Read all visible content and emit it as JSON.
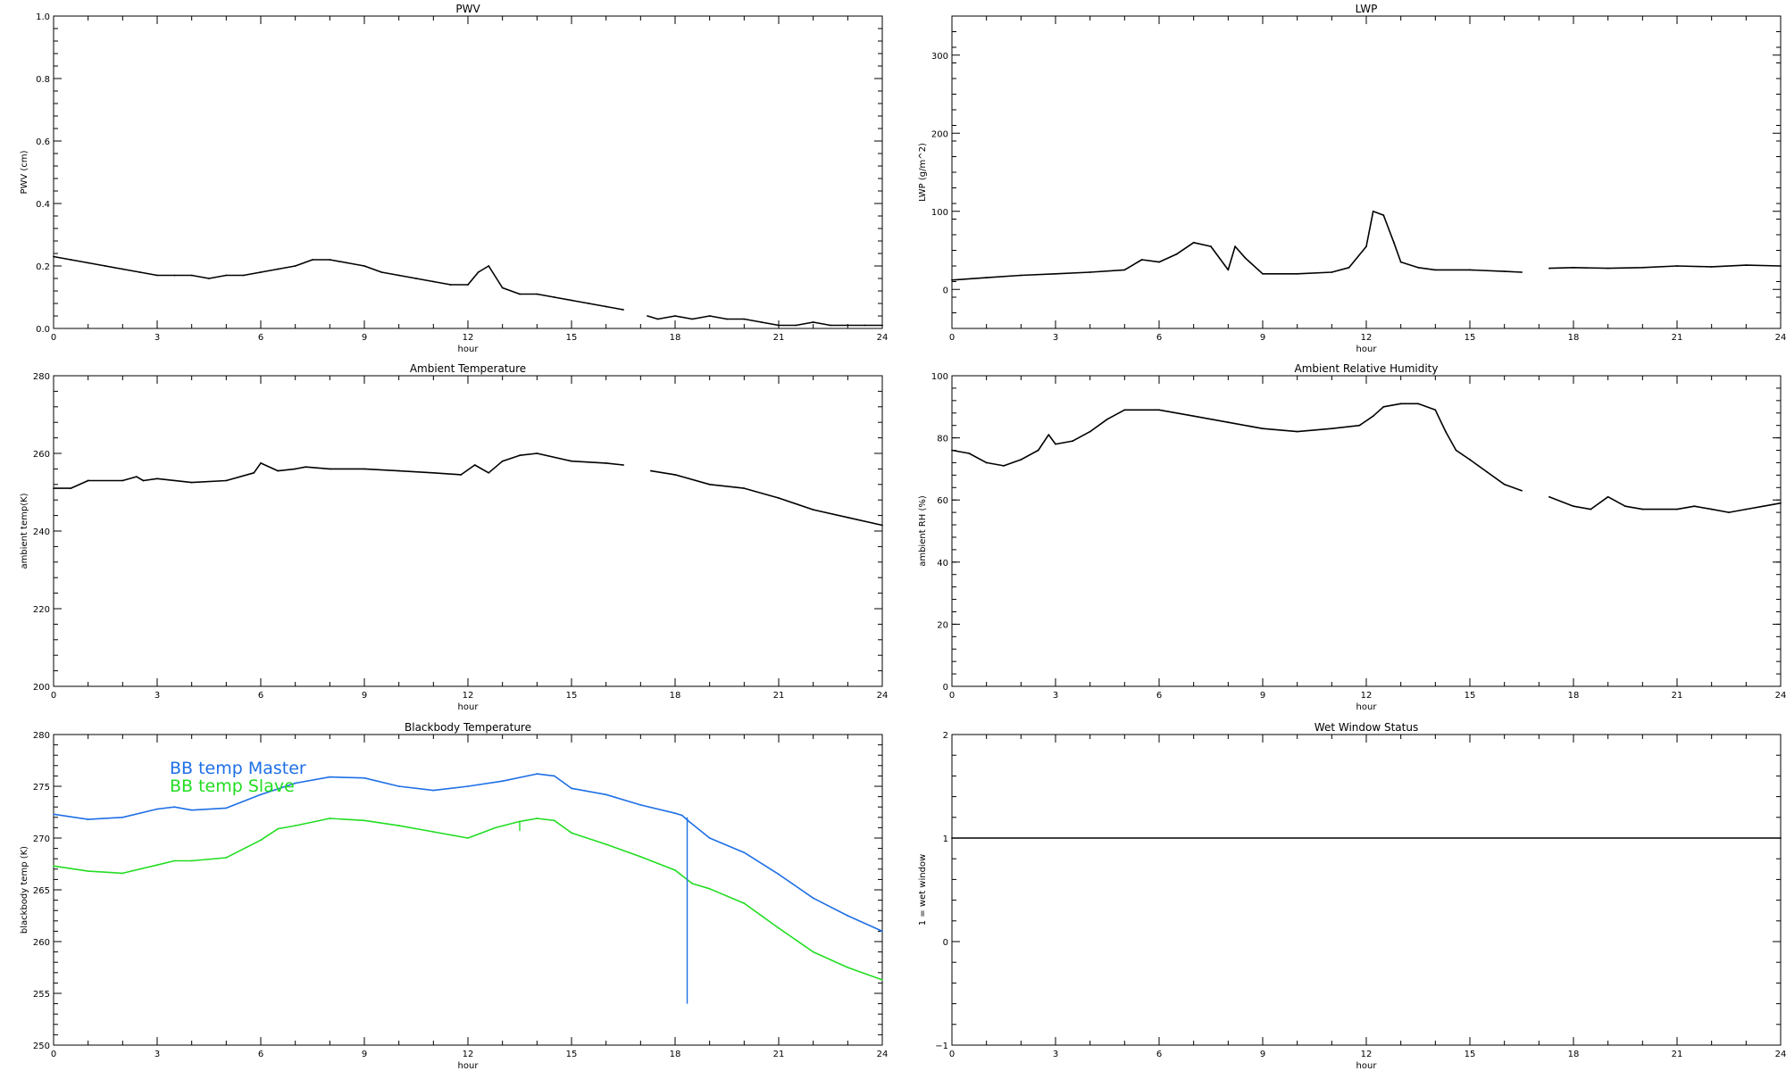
{
  "chart_data": [
    {
      "type": "line",
      "title": "PWV",
      "xlabel": "hour",
      "ylabel": "PWV (cm)",
      "xlim": [
        0,
        24
      ],
      "ylim": [
        0,
        1
      ],
      "xticks": [
        "0",
        "3",
        "6",
        "9",
        "12",
        "15",
        "18",
        "21",
        "24"
      ],
      "yticks": [
        "0.0",
        "0.2",
        "0.4",
        "0.6",
        "0.8",
        "1.0"
      ],
      "color": "#000000",
      "series": [
        {
          "segments": [
            {
              "x": [
                0,
                0.5,
                1,
                1.5,
                2,
                2.5,
                3,
                3.5,
                4,
                4.5,
                5,
                5.5,
                6,
                6.5,
                7,
                7.5,
                8,
                8.5,
                9,
                9.5,
                10,
                10.5,
                11,
                11.5,
                12,
                12.3,
                12.6,
                13,
                13.5,
                14,
                14.5,
                15,
                15.5,
                16,
                16.5
              ],
              "y": [
                0.23,
                0.22,
                0.21,
                0.2,
                0.19,
                0.18,
                0.17,
                0.17,
                0.17,
                0.16,
                0.17,
                0.17,
                0.18,
                0.19,
                0.2,
                0.22,
                0.22,
                0.21,
                0.2,
                0.18,
                0.17,
                0.16,
                0.15,
                0.14,
                0.14,
                0.18,
                0.2,
                0.13,
                0.11,
                0.11,
                0.1,
                0.09,
                0.08,
                0.07,
                0.06
              ]
            },
            {
              "x": [
                17.2,
                17.5,
                18,
                18.5,
                19,
                19.5,
                20,
                20.5,
                21,
                21.5,
                22,
                22.5,
                23,
                23.5,
                24
              ],
              "y": [
                0.04,
                0.03,
                0.04,
                0.03,
                0.04,
                0.03,
                0.03,
                0.02,
                0.01,
                0.01,
                0.02,
                0.01,
                0.01,
                0.01,
                0.01
              ]
            }
          ]
        }
      ]
    },
    {
      "type": "line",
      "title": "LWP",
      "xlabel": "hour",
      "ylabel": "LWP (g/m^2)",
      "xlim": [
        0,
        24
      ],
      "ylim": [
        -50,
        350
      ],
      "xticks": [
        "0",
        "3",
        "6",
        "9",
        "12",
        "15",
        "18",
        "21",
        "24"
      ],
      "yticks": [
        "0",
        "100",
        "200",
        "300"
      ],
      "color": "#000000",
      "series": [
        {
          "segments": [
            {
              "x": [
                0,
                1,
                2,
                3,
                4,
                5,
                5.5,
                6,
                6.5,
                7,
                7.5,
                8,
                8.2,
                8.5,
                9,
                10,
                11,
                11.5,
                12,
                12.2,
                12.5,
                12.8,
                13,
                13.5,
                14,
                15,
                16,
                16.5
              ],
              "y": [
                12,
                15,
                18,
                20,
                22,
                25,
                38,
                35,
                45,
                60,
                55,
                25,
                55,
                40,
                20,
                20,
                22,
                28,
                55,
                100,
                95,
                60,
                35,
                28,
                25,
                25,
                23,
                22
              ]
            },
            {
              "x": [
                17.3,
                18,
                19,
                20,
                21,
                22,
                23,
                24
              ],
              "y": [
                27,
                28,
                27,
                28,
                30,
                29,
                31,
                30
              ]
            }
          ]
        }
      ]
    },
    {
      "type": "line",
      "title": "Ambient Temperature",
      "xlabel": "hour",
      "ylabel": "ambient temp(K)",
      "xlim": [
        0,
        24
      ],
      "ylim": [
        200,
        280
      ],
      "xticks": [
        "0",
        "3",
        "6",
        "9",
        "12",
        "15",
        "18",
        "21",
        "24"
      ],
      "yticks": [
        "200",
        "220",
        "240",
        "260",
        "280"
      ],
      "color": "#000000",
      "series": [
        {
          "segments": [
            {
              "x": [
                0,
                0.5,
                1,
                2,
                2.4,
                2.6,
                3,
                4,
                5,
                5.8,
                6,
                6.5,
                7,
                7.3,
                8,
                9,
                10,
                11,
                11.8,
                12.2,
                12.6,
                13,
                13.5,
                14,
                15,
                16,
                16.5
              ],
              "y": [
                251,
                251,
                253,
                253,
                254,
                253,
                253.5,
                252.5,
                253,
                255,
                257.5,
                255.5,
                256,
                256.5,
                256,
                256,
                255.5,
                255,
                254.5,
                257,
                255,
                258,
                259.5,
                260,
                258,
                257.5,
                257
              ]
            },
            {
              "x": [
                17.3,
                18,
                19,
                20,
                21,
                22,
                23,
                24
              ],
              "y": [
                255.5,
                254.5,
                252,
                251,
                248.5,
                245.5,
                243.5,
                241.5
              ]
            }
          ]
        }
      ]
    },
    {
      "type": "line",
      "title": "Ambient Relative Humidity",
      "xlabel": "hour",
      "ylabel": "ambient RH (%)",
      "xlim": [
        0,
        24
      ],
      "ylim": [
        0,
        100
      ],
      "xticks": [
        "0",
        "3",
        "6",
        "9",
        "12",
        "15",
        "18",
        "21",
        "24"
      ],
      "yticks": [
        "0",
        "20",
        "40",
        "60",
        "80",
        "100"
      ],
      "color": "#000000",
      "series": [
        {
          "segments": [
            {
              "x": [
                0,
                0.5,
                1,
                1.5,
                2,
                2.5,
                2.8,
                3,
                3.5,
                4,
                4.5,
                5,
                6,
                7,
                8,
                9,
                10,
                11,
                11.8,
                12.2,
                12.5,
                13,
                13.5,
                14,
                14.3,
                14.6,
                15,
                15.5,
                16,
                16.5
              ],
              "y": [
                76,
                75,
                72,
                71,
                73,
                76,
                81,
                78,
                79,
                82,
                86,
                89,
                89,
                87,
                85,
                83,
                82,
                83,
                84,
                87,
                90,
                91,
                91,
                89,
                82,
                76,
                73,
                69,
                65,
                63
              ]
            },
            {
              "x": [
                17.3,
                18,
                18.5,
                19,
                19.5,
                20,
                21,
                21.5,
                22,
                22.5,
                23,
                23.5,
                24
              ],
              "y": [
                61,
                58,
                57,
                61,
                58,
                57,
                57,
                58,
                57,
                56,
                57,
                58,
                59
              ]
            }
          ]
        }
      ]
    },
    {
      "type": "line",
      "title": "Blackbody Temperature",
      "xlabel": "hour",
      "ylabel": "blackbody temp (K)",
      "xlim": [
        0,
        24
      ],
      "ylim": [
        250,
        280
      ],
      "xticks": [
        "0",
        "3",
        "6",
        "9",
        "12",
        "15",
        "18",
        "21",
        "24"
      ],
      "yticks": [
        "250",
        "255",
        "260",
        "265",
        "270",
        "275",
        "280"
      ],
      "legend": "top-left",
      "series": [
        {
          "name": "BB temp Master",
          "color": "#1e6fe6",
          "x": [
            0,
            1,
            2,
            3,
            3.5,
            4,
            5,
            6,
            7,
            8,
            9,
            10,
            11,
            12,
            13,
            14,
            14.5,
            15,
            16,
            17,
            18,
            18.2,
            18.4,
            19,
            20,
            21,
            22,
            23,
            24
          ],
          "y": [
            272.3,
            271.8,
            272,
            272.8,
            273,
            272.7,
            272.9,
            274.2,
            275.3,
            275.9,
            275.8,
            275,
            274.6,
            275,
            275.5,
            276.2,
            276,
            274.8,
            274.2,
            273.2,
            272.4,
            272.2,
            271.6,
            270,
            268.6,
            266.5,
            264.2,
            262.5,
            261
          ]
        },
        {
          "name": "BB temp Slave",
          "color": "#22dd22",
          "x": [
            0,
            1,
            2,
            3,
            3.5,
            4,
            5,
            6,
            6.5,
            7,
            8,
            9,
            10,
            11,
            12,
            12.8,
            13.5,
            14,
            14.5,
            15,
            16,
            17,
            18,
            18.5,
            19,
            20,
            21,
            22,
            23,
            24
          ],
          "y": [
            267.3,
            266.8,
            266.6,
            267.4,
            267.8,
            267.8,
            268.1,
            269.8,
            270.9,
            271.2,
            271.9,
            271.7,
            271.2,
            270.6,
            270,
            271,
            271.6,
            271.9,
            271.7,
            270.5,
            269.4,
            268.2,
            266.9,
            265.6,
            265.1,
            263.7,
            261.3,
            259,
            257.5,
            256.3
          ]
        }
      ],
      "annotations": [
        {
          "kind": "spike",
          "series": "BB temp Master",
          "x": 18.35,
          "y_top": 272,
          "y_bottom": 254
        },
        {
          "kind": "spike",
          "series": "BB temp Slave",
          "x": 13.5,
          "y_top": 271.6,
          "y_bottom": 270.7
        }
      ]
    },
    {
      "type": "line",
      "title": "Wet Window Status",
      "xlabel": "hour",
      "ylabel": "1 = wet window",
      "xlim": [
        0,
        24
      ],
      "ylim": [
        -1,
        2
      ],
      "xticks": [
        "0",
        "3",
        "6",
        "9",
        "12",
        "15",
        "18",
        "21",
        "24"
      ],
      "yticks": [
        "−1",
        "0",
        "1",
        "2"
      ],
      "color": "#000000",
      "series": [
        {
          "segments": [
            {
              "x": [
                0,
                24
              ],
              "y": [
                1,
                1
              ]
            }
          ]
        }
      ]
    }
  ]
}
